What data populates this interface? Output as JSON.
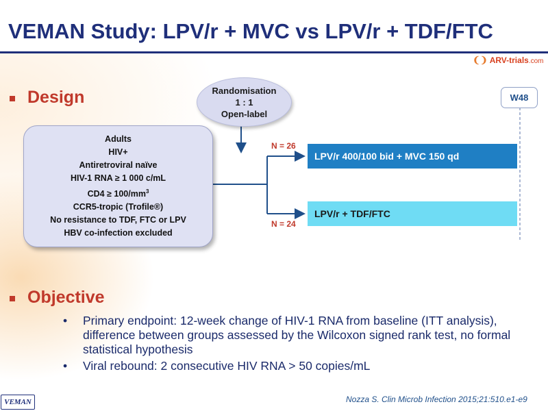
{
  "title": "VEMAN Study: LPV/r + MVC vs LPV/r + TDF/FTC",
  "logo": {
    "text": "ARV-trials",
    "suffix": ".com"
  },
  "design": {
    "heading": "Design",
    "randomisation": [
      "Randomisation",
      "1 : 1",
      "Open-label"
    ],
    "criteria": [
      "Adults",
      "HIV+",
      "Antiretroviral naïve",
      "HIV-1 RNA ≥ 1 000 c/mL",
      "CD4 ≥ 100/mm",
      "CCR5-tropic  (Trofile®)",
      "No resistance to TDF, FTC or LPV",
      "HBV co-infection excluded"
    ],
    "criteria_sup": "3",
    "arms": [
      {
        "n": "N = 26",
        "label": "LPV/r 400/100 bid + MVC 150 qd",
        "color": "#1f7fc4"
      },
      {
        "n": "N = 24",
        "label": "LPV/r + TDF/FTC",
        "color": "#6fdcf4"
      }
    ],
    "timepoint": "W48"
  },
  "objective": {
    "heading": "Objective",
    "items": [
      "Primary endpoint: 12-week change of HIV-1 RNA from baseline (ITT analysis), difference between groups assessed by the Wilcoxon signed rank test, no formal statistical hypothesis",
      "Viral rebound: 2 consecutive HIV RNA > 50 copies/mL"
    ]
  },
  "footer": {
    "tag": "VEMAN",
    "citation": "Nozza S. Clin Microb Infection 2015;21:510.e1-e9"
  },
  "colors": {
    "title": "#1f2f7a",
    "section_heading": "#c0392b",
    "arm_a": "#1f7fc4",
    "arm_b": "#6fdcf4"
  }
}
